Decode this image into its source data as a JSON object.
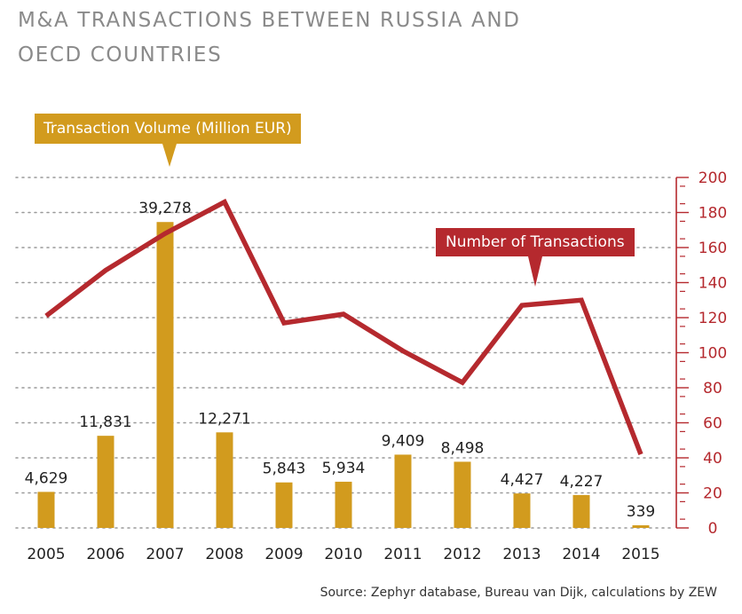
{
  "title": "M&A TRANSACTIONS BETWEEN RUSSIA AND OECD COUNTRIES",
  "source": "Source: Zephyr database, Bureau van Dijk, calculations by ZEW",
  "colors": {
    "volume": "#d29b1e",
    "transactions": "#b5292e",
    "grid": "#9a9a9a"
  },
  "chart_data": {
    "type": "bar",
    "categories": [
      "2005",
      "2006",
      "2007",
      "2008",
      "2009",
      "2010",
      "2011",
      "2012",
      "2013",
      "2014",
      "2015"
    ],
    "series": [
      {
        "name": "Transaction Volume (Million EUR)",
        "type": "bar",
        "values": [
          4629,
          11831,
          39278,
          12271,
          5843,
          5934,
          9409,
          8498,
          4427,
          4227,
          339
        ],
        "labels": [
          "4,629",
          "11,831",
          "39,278",
          "12,271",
          "5,843",
          "5,934",
          "9,409",
          "8,498",
          "4,427",
          "4,227",
          "339"
        ]
      },
      {
        "name": "Number of Transactions",
        "type": "line",
        "axis": "right",
        "values": [
          121,
          147,
          168,
          186,
          117,
          122,
          101,
          83,
          127,
          130,
          42
        ]
      }
    ],
    "left_ylim": [
      0,
      45000
    ],
    "right_ylim": [
      0,
      200
    ],
    "right_yticks": [
      0,
      20,
      40,
      60,
      80,
      100,
      120,
      140,
      160,
      180,
      200
    ],
    "grid": true,
    "xlabel": "",
    "ylabel": ""
  }
}
